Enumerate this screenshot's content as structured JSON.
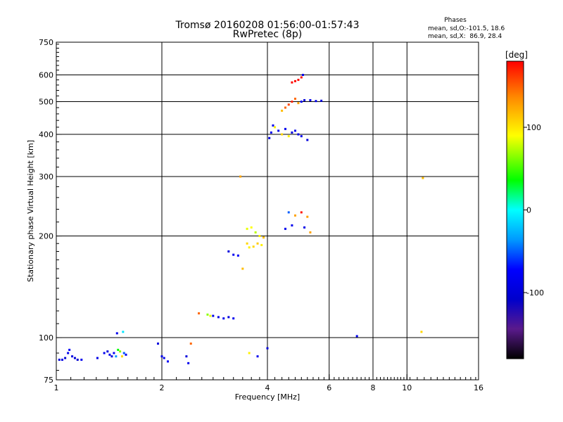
{
  "header": {
    "title_line1": "Tromsø 20160208 01:56:00-01:57:43",
    "title_line2": "RwPretec (8p)"
  },
  "stats": {
    "heading": "Phases",
    "line_o": "mean, sd,O:-101.5, 18.6",
    "line_x": "mean, sd,X:  86.9, 28.4"
  },
  "colorbar": {
    "unit_label": "[deg]",
    "range": [
      -180,
      180
    ],
    "ticks": [
      {
        "value": 100,
        "label": "100"
      },
      {
        "value": 0,
        "label": "0"
      },
      {
        "value": -100,
        "label": "-100"
      }
    ]
  },
  "chart_data": {
    "type": "scatter",
    "title": "Tromsø 20160208 01:56:00-01:57:43",
    "subtitle": "RwPretec (8p)",
    "xlabel": "Frequency [MHz]",
    "ylabel": "Stationary phase Virtual Height [km]",
    "xscale": "log",
    "yscale": "log",
    "xlim": [
      1,
      16
    ],
    "ylim": [
      75,
      750
    ],
    "grid": true,
    "x_ticks": [
      {
        "value": 1,
        "label": "1"
      },
      {
        "value": 2,
        "label": "2"
      },
      {
        "value": 4,
        "label": "4"
      },
      {
        "value": 6,
        "label": "6"
      },
      {
        "value": 8,
        "label": "8"
      },
      {
        "value": 10,
        "label": "10"
      },
      {
        "value": 16,
        "label": "16"
      }
    ],
    "y_ticks": [
      {
        "value": 75,
        "label": "75"
      },
      {
        "value": 100,
        "label": "100"
      },
      {
        "value": 200,
        "label": "200"
      },
      {
        "value": 300,
        "label": "300"
      },
      {
        "value": 400,
        "label": "400"
      },
      {
        "value": 500,
        "label": "500"
      },
      {
        "value": 600,
        "label": "600"
      },
      {
        "value": 750,
        "label": "750"
      }
    ],
    "x_grid": [
      2,
      4,
      6,
      8,
      10
    ],
    "y_grid": [
      100,
      200,
      300,
      400,
      500,
      600
    ],
    "color_scale": "phase [deg], -180 (black) to 180 (red)",
    "points": [
      [
        1.02,
        86,
        -110
      ],
      [
        1.04,
        86,
        -105
      ],
      [
        1.06,
        87,
        -115
      ],
      [
        1.08,
        90,
        -100
      ],
      [
        1.09,
        92,
        -95
      ],
      [
        1.11,
        88,
        -108
      ],
      [
        1.13,
        87,
        -112
      ],
      [
        1.15,
        86,
        -118
      ],
      [
        1.18,
        86,
        -100
      ],
      [
        1.31,
        87,
        -105
      ],
      [
        1.37,
        90,
        -100
      ],
      [
        1.4,
        91,
        -110
      ],
      [
        1.42,
        89,
        -102
      ],
      [
        1.44,
        88,
        -108
      ],
      [
        1.46,
        90,
        -95
      ],
      [
        1.48,
        88,
        -40
      ],
      [
        1.5,
        92,
        40
      ],
      [
        1.52,
        91,
        70
      ],
      [
        1.54,
        88,
        110
      ],
      [
        1.56,
        90,
        -60
      ],
      [
        1.58,
        89,
        -100
      ],
      [
        1.49,
        103,
        -100
      ],
      [
        1.55,
        104,
        -10
      ],
      [
        1.95,
        96,
        -110
      ],
      [
        2.0,
        88,
        -105
      ],
      [
        2.03,
        87,
        -100
      ],
      [
        2.08,
        85,
        -95
      ],
      [
        2.35,
        88,
        -110
      ],
      [
        2.38,
        84,
        -100
      ],
      [
        2.42,
        96,
        150
      ],
      [
        2.55,
        118,
        150
      ],
      [
        2.7,
        117,
        70
      ],
      [
        2.75,
        116,
        90
      ],
      [
        2.8,
        116,
        -100
      ],
      [
        2.9,
        115,
        -105
      ],
      [
        3.0,
        114,
        -100
      ],
      [
        3.1,
        115,
        -110
      ],
      [
        3.2,
        114,
        -100
      ],
      [
        3.1,
        180,
        -110
      ],
      [
        3.2,
        176,
        -100
      ],
      [
        3.3,
        175,
        -95
      ],
      [
        3.4,
        160,
        120
      ],
      [
        3.35,
        300,
        130
      ],
      [
        3.5,
        190,
        110
      ],
      [
        3.55,
        185,
        100
      ],
      [
        3.65,
        186,
        110
      ],
      [
        3.75,
        190,
        115
      ],
      [
        3.85,
        188,
        100
      ],
      [
        3.5,
        210,
        90
      ],
      [
        3.6,
        212,
        95
      ],
      [
        3.7,
        205,
        80
      ],
      [
        3.8,
        200,
        100
      ],
      [
        3.9,
        198,
        120
      ],
      [
        3.55,
        90,
        100
      ],
      [
        3.75,
        88,
        -100
      ],
      [
        4.0,
        93,
        -110
      ],
      [
        4.05,
        390,
        -110
      ],
      [
        4.1,
        405,
        -100
      ],
      [
        4.2,
        420,
        100
      ],
      [
        4.3,
        410,
        -105
      ],
      [
        4.4,
        400,
        110
      ],
      [
        4.5,
        415,
        -100
      ],
      [
        4.6,
        395,
        100
      ],
      [
        4.7,
        405,
        -110
      ],
      [
        4.8,
        410,
        -100
      ],
      [
        4.9,
        400,
        -105
      ],
      [
        5.0,
        395,
        -100
      ],
      [
        5.2,
        385,
        -110
      ],
      [
        4.15,
        425,
        -100
      ],
      [
        4.4,
        470,
        120
      ],
      [
        4.5,
        480,
        150
      ],
      [
        4.6,
        490,
        160
      ],
      [
        4.7,
        500,
        170
      ],
      [
        4.8,
        510,
        150
      ],
      [
        4.9,
        495,
        130
      ],
      [
        5.0,
        500,
        -100
      ],
      [
        5.1,
        505,
        -110
      ],
      [
        5.3,
        505,
        -100
      ],
      [
        5.5,
        502,
        -105
      ],
      [
        5.7,
        503,
        -110
      ],
      [
        4.7,
        570,
        178
      ],
      [
        4.8,
        575,
        178
      ],
      [
        4.9,
        580,
        178
      ],
      [
        5.0,
        590,
        178
      ],
      [
        5.05,
        600,
        -100
      ],
      [
        4.6,
        235,
        -60
      ],
      [
        4.8,
        230,
        130
      ],
      [
        5.0,
        235,
        175
      ],
      [
        5.2,
        228,
        130
      ],
      [
        4.5,
        210,
        -100
      ],
      [
        4.7,
        215,
        -100
      ],
      [
        5.1,
        212,
        -105
      ],
      [
        5.3,
        205,
        130
      ],
      [
        7.2,
        101,
        -100
      ],
      [
        11.0,
        104,
        110
      ],
      [
        11.1,
        297,
        120
      ]
    ]
  }
}
